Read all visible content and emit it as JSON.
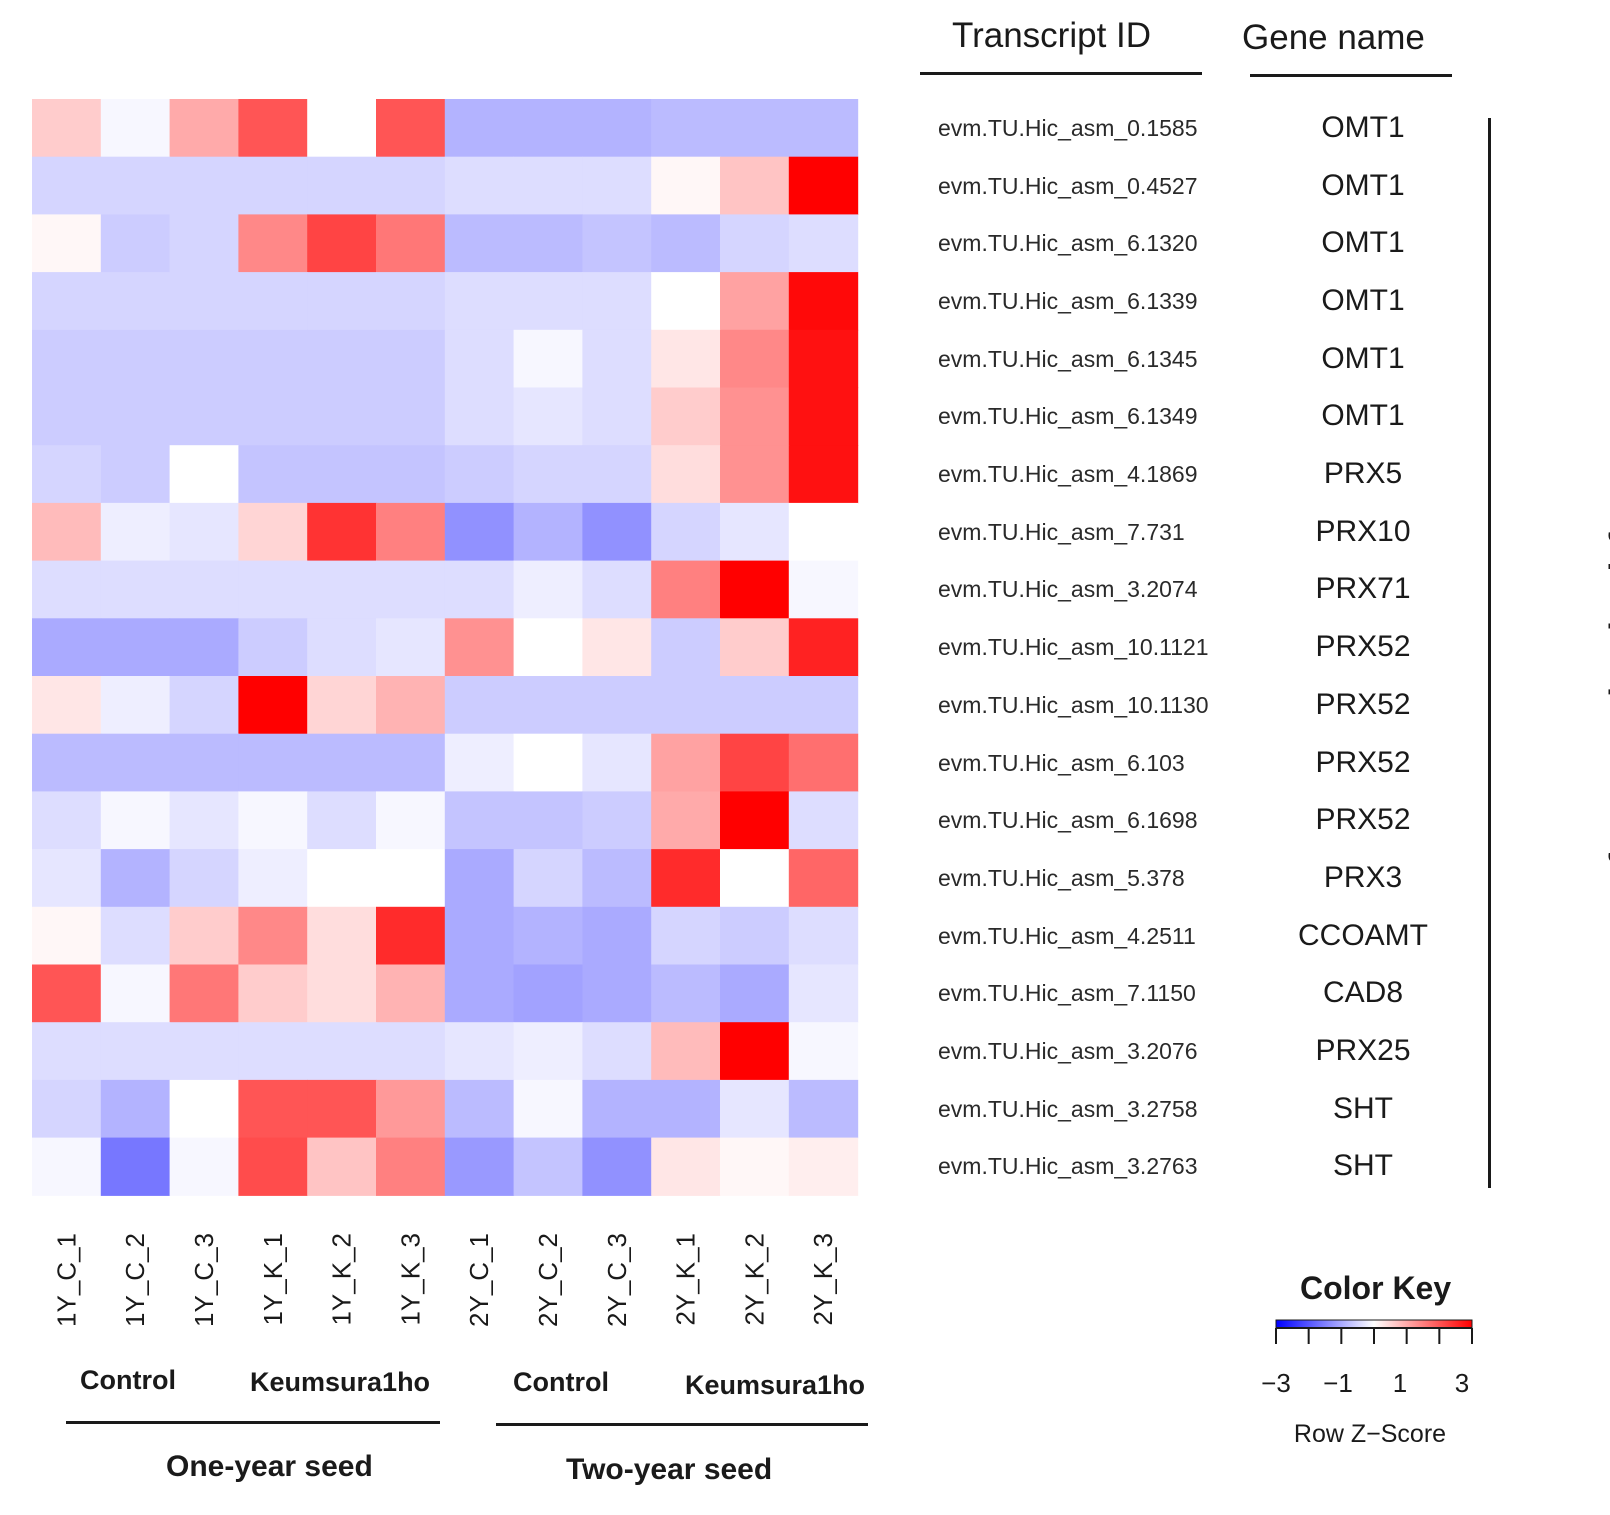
{
  "headers": {
    "transcript_id": "Transcript ID",
    "gene_name": "Gene name"
  },
  "pathway_label": "Phenylpropanpoid biosynthesis",
  "groups": {
    "left_control": "Control",
    "left_treat": "Keumsura1ho",
    "right_control": "Control",
    "right_treat": "Keumsura1ho"
  },
  "seeds": {
    "one_year": "One-year seed",
    "two_year": "Two-year seed"
  },
  "color_key": {
    "title": "Color Key",
    "axis_label": "Row Z−Score",
    "ticks": [
      "−3",
      "−1",
      "1",
      "3"
    ],
    "low_color": "#0000ff",
    "mid_color": "#ffffff",
    "high_color": "#ff0000"
  },
  "chart_data": {
    "type": "heatmap",
    "columns": [
      "1Y_C_1",
      "1Y_C_2",
      "1Y_C_3",
      "1Y_K_1",
      "1Y_K_2",
      "1Y_K_3",
      "2Y_C_1",
      "2Y_C_2",
      "2Y_C_3",
      "2Y_K_1",
      "2Y_K_2",
      "2Y_K_3"
    ],
    "rows": [
      {
        "transcript": "evm.TU.Hic_asm_0.1585",
        "gene": "OMT1",
        "z": [
          0.6,
          -0.1,
          1.0,
          2.0,
          0.0,
          2.0,
          -0.9,
          -0.9,
          -0.9,
          -0.8,
          -0.8,
          -0.8
        ]
      },
      {
        "transcript": "evm.TU.Hic_asm_0.4527",
        "gene": "OMT1",
        "z": [
          -0.5,
          -0.5,
          -0.5,
          -0.5,
          -0.5,
          -0.5,
          -0.4,
          -0.4,
          -0.4,
          0.1,
          0.7,
          3.0
        ]
      },
      {
        "transcript": "evm.TU.Hic_asm_6.1320",
        "gene": "OMT1",
        "z": [
          0.1,
          -0.6,
          -0.5,
          1.4,
          2.2,
          1.6,
          -0.8,
          -0.8,
          -0.7,
          -0.8,
          -0.5,
          -0.4
        ]
      },
      {
        "transcript": "evm.TU.Hic_asm_6.1339",
        "gene": "OMT1",
        "z": [
          -0.5,
          -0.5,
          -0.5,
          -0.5,
          -0.5,
          -0.5,
          -0.4,
          -0.4,
          -0.4,
          0.0,
          1.1,
          2.9
        ]
      },
      {
        "transcript": "evm.TU.Hic_asm_6.1345",
        "gene": "OMT1",
        "z": [
          -0.6,
          -0.6,
          -0.6,
          -0.6,
          -0.6,
          -0.6,
          -0.4,
          -0.1,
          -0.4,
          0.3,
          1.4,
          2.8
        ]
      },
      {
        "transcript": "evm.TU.Hic_asm_6.1349",
        "gene": "OMT1",
        "z": [
          -0.6,
          -0.6,
          -0.6,
          -0.6,
          -0.6,
          -0.6,
          -0.4,
          -0.3,
          -0.4,
          0.6,
          1.3,
          2.8
        ]
      },
      {
        "transcript": "evm.TU.Hic_asm_4.1869",
        "gene": "PRX5",
        "z": [
          -0.5,
          -0.6,
          0.0,
          -0.7,
          -0.7,
          -0.7,
          -0.6,
          -0.5,
          -0.5,
          0.4,
          1.3,
          2.8
        ]
      },
      {
        "transcript": "evm.TU.Hic_asm_7.731",
        "gene": "PRX10",
        "z": [
          0.8,
          -0.2,
          -0.3,
          0.5,
          2.4,
          1.5,
          -1.3,
          -0.9,
          -1.3,
          -0.5,
          -0.3,
          0.0
        ]
      },
      {
        "transcript": "evm.TU.Hic_asm_3.2074",
        "gene": "PRX71",
        "z": [
          -0.4,
          -0.4,
          -0.4,
          -0.4,
          -0.4,
          -0.4,
          -0.4,
          -0.2,
          -0.4,
          1.5,
          3.0,
          -0.1
        ]
      },
      {
        "transcript": "evm.TU.Hic_asm_10.1121",
        "gene": "PRX52",
        "z": [
          -1.0,
          -1.0,
          -1.0,
          -0.6,
          -0.4,
          -0.3,
          1.3,
          0.0,
          0.3,
          -0.6,
          0.6,
          2.6
        ]
      },
      {
        "transcript": "evm.TU.Hic_asm_10.1130",
        "gene": "PRX52",
        "z": [
          0.3,
          -0.2,
          -0.5,
          3.0,
          0.5,
          0.9,
          -0.6,
          -0.6,
          -0.6,
          -0.6,
          -0.6,
          -0.6
        ]
      },
      {
        "transcript": "evm.TU.Hic_asm_6.103",
        "gene": "PRX52",
        "z": [
          -0.8,
          -0.8,
          -0.8,
          -0.8,
          -0.8,
          -0.8,
          -0.2,
          0.0,
          -0.3,
          1.1,
          2.2,
          1.7
        ]
      },
      {
        "transcript": "evm.TU.Hic_asm_6.1698",
        "gene": "PRX52",
        "z": [
          -0.4,
          -0.1,
          -0.3,
          -0.1,
          -0.4,
          -0.1,
          -0.7,
          -0.7,
          -0.6,
          1.0,
          3.0,
          -0.4
        ]
      },
      {
        "transcript": "evm.TU.Hic_asm_5.378",
        "gene": "PRX3",
        "z": [
          -0.3,
          -0.9,
          -0.5,
          -0.2,
          0.0,
          0.0,
          -1.0,
          -0.5,
          -0.8,
          2.5,
          0.0,
          1.8
        ]
      },
      {
        "transcript": "evm.TU.Hic_asm_4.2511",
        "gene": "CCOAMT",
        "z": [
          0.1,
          -0.4,
          0.6,
          1.4,
          0.4,
          2.5,
          -1.0,
          -0.9,
          -1.0,
          -0.5,
          -0.6,
          -0.4
        ]
      },
      {
        "transcript": "evm.TU.Hic_asm_7.1150",
        "gene": "CAD8",
        "z": [
          2.0,
          -0.1,
          1.6,
          0.6,
          0.4,
          0.9,
          -1.0,
          -1.1,
          -1.0,
          -0.8,
          -1.0,
          -0.3
        ]
      },
      {
        "transcript": "evm.TU.Hic_asm_3.2076",
        "gene": "PRX25",
        "z": [
          -0.4,
          -0.4,
          -0.4,
          -0.4,
          -0.4,
          -0.4,
          -0.3,
          -0.2,
          -0.4,
          0.8,
          3.0,
          -0.1
        ]
      },
      {
        "transcript": "evm.TU.Hic_asm_3.2758",
        "gene": "SHT",
        "z": [
          -0.5,
          -0.9,
          0.0,
          2.0,
          2.0,
          1.2,
          -0.8,
          -0.1,
          -0.9,
          -0.9,
          -0.3,
          -0.8
        ]
      },
      {
        "transcript": "evm.TU.Hic_asm_3.2763",
        "gene": "SHT",
        "z": [
          -0.1,
          -1.6,
          -0.1,
          2.1,
          0.7,
          1.5,
          -1.2,
          -0.7,
          -1.3,
          0.3,
          0.1,
          0.2
        ]
      }
    ],
    "scale": {
      "min": -3,
      "max": 3
    }
  }
}
